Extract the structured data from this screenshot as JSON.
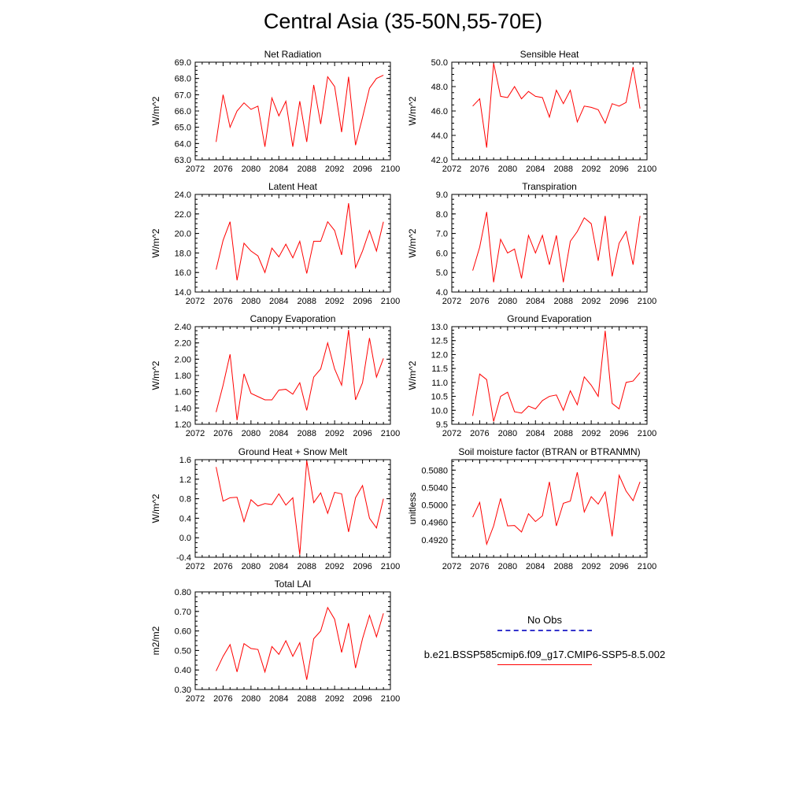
{
  "title": "Central Asia (35-50N,55-70E)",
  "legend": {
    "entries": [
      {
        "label": "No Obs",
        "color": "#3333cc",
        "dash": "dashed"
      },
      {
        "label": "b.e21.BSSP585cmip6.f09_g17.CMIP6-SSP5-8.5.002",
        "color": "#ff0000",
        "dash": "solid"
      }
    ]
  },
  "chart_data": [
    {
      "type": "line",
      "title": "Net Radiation",
      "ylabel": "W/m^2",
      "xlim": [
        2072,
        2100
      ],
      "xticks": [
        "2072",
        "2076",
        "2080",
        "2084",
        "2088",
        "2092",
        "2096",
        "2100"
      ],
      "ylim": [
        63,
        69
      ],
      "yticks": [
        "63.0",
        "64.0",
        "65.0",
        "66.0",
        "67.0",
        "68.0",
        "69.0"
      ],
      "x": [
        2075,
        2076,
        2077,
        2078,
        2079,
        2080,
        2081,
        2082,
        2083,
        2084,
        2085,
        2086,
        2087,
        2088,
        2089,
        2090,
        2091,
        2092,
        2093,
        2094,
        2095,
        2096,
        2097,
        2098,
        2099
      ],
      "series": [
        {
          "color": "#ff0000",
          "values": [
            64.1,
            67.0,
            65.0,
            66.0,
            66.5,
            66.1,
            66.3,
            63.8,
            66.8,
            65.7,
            66.6,
            63.8,
            66.6,
            64.1,
            67.6,
            65.2,
            68.1,
            67.5,
            64.7,
            68.1,
            63.9,
            65.6,
            67.4,
            68.0,
            68.2
          ]
        }
      ]
    },
    {
      "type": "line",
      "title": "Sensible Heat",
      "ylabel": "W/m^2",
      "xlim": [
        2072,
        2100
      ],
      "xticks": [
        "2072",
        "2076",
        "2080",
        "2084",
        "2088",
        "2092",
        "2096",
        "2100"
      ],
      "ylim": [
        42,
        50
      ],
      "yticks": [
        "42.0",
        "44.0",
        "46.0",
        "48.0",
        "50.0"
      ],
      "x": [
        2075,
        2076,
        2077,
        2078,
        2079,
        2080,
        2081,
        2082,
        2083,
        2084,
        2085,
        2086,
        2087,
        2088,
        2089,
        2090,
        2091,
        2092,
        2093,
        2094,
        2095,
        2096,
        2097,
        2098,
        2099
      ],
      "series": [
        {
          "color": "#ff0000",
          "values": [
            46.4,
            47.0,
            43.0,
            49.9,
            47.2,
            47.1,
            48.0,
            47.0,
            47.6,
            47.2,
            47.1,
            45.5,
            47.7,
            46.6,
            47.7,
            45.1,
            46.4,
            46.3,
            46.1,
            45.0,
            46.6,
            46.4,
            46.7,
            49.6,
            46.2
          ]
        }
      ]
    },
    {
      "type": "line",
      "title": "Latent Heat",
      "ylabel": "W/m^2",
      "xlim": [
        2072,
        2100
      ],
      "xticks": [
        "2072",
        "2076",
        "2080",
        "2084",
        "2088",
        "2092",
        "2096",
        "2100"
      ],
      "ylim": [
        14,
        24
      ],
      "yticks": [
        "14.0",
        "16.0",
        "18.0",
        "20.0",
        "22.0",
        "24.0"
      ],
      "x": [
        2075,
        2076,
        2077,
        2078,
        2079,
        2080,
        2081,
        2082,
        2083,
        2084,
        2085,
        2086,
        2087,
        2088,
        2089,
        2090,
        2091,
        2092,
        2093,
        2094,
        2095,
        2096,
        2097,
        2098,
        2099
      ],
      "series": [
        {
          "color": "#ff0000",
          "values": [
            16.3,
            19.3,
            21.2,
            15.2,
            19.0,
            18.2,
            17.7,
            16.0,
            18.5,
            17.6,
            18.9,
            17.5,
            19.2,
            15.9,
            19.2,
            19.2,
            21.2,
            20.3,
            17.8,
            23.1,
            16.5,
            18.2,
            20.3,
            18.2,
            21.2
          ]
        }
      ]
    },
    {
      "type": "line",
      "title": "Transpiration",
      "ylabel": "W/m^2",
      "xlim": [
        2072,
        2100
      ],
      "xticks": [
        "2072",
        "2076",
        "2080",
        "2084",
        "2088",
        "2092",
        "2096",
        "2100"
      ],
      "ylim": [
        4,
        9
      ],
      "yticks": [
        "4.0",
        "5.0",
        "6.0",
        "7.0",
        "8.0",
        "9.0"
      ],
      "x": [
        2075,
        2076,
        2077,
        2078,
        2079,
        2080,
        2081,
        2082,
        2083,
        2084,
        2085,
        2086,
        2087,
        2088,
        2089,
        2090,
        2091,
        2092,
        2093,
        2094,
        2095,
        2096,
        2097,
        2098,
        2099
      ],
      "series": [
        {
          "color": "#ff0000",
          "values": [
            5.1,
            6.3,
            8.1,
            4.5,
            6.7,
            6.0,
            6.2,
            4.7,
            6.9,
            6.0,
            6.9,
            5.4,
            6.9,
            4.5,
            6.6,
            7.1,
            7.8,
            7.5,
            5.6,
            7.9,
            4.8,
            6.5,
            7.1,
            5.4,
            7.9
          ]
        }
      ]
    },
    {
      "type": "line",
      "title": "Canopy Evaporation",
      "ylabel": "W/m^2",
      "xlim": [
        2072,
        2100
      ],
      "xticks": [
        "2072",
        "2076",
        "2080",
        "2084",
        "2088",
        "2092",
        "2096",
        "2100"
      ],
      "ylim": [
        1.2,
        2.4
      ],
      "yticks": [
        "1.20",
        "1.40",
        "1.60",
        "1.80",
        "2.00",
        "2.20",
        "2.40"
      ],
      "x": [
        2075,
        2076,
        2077,
        2078,
        2079,
        2080,
        2081,
        2082,
        2083,
        2084,
        2085,
        2086,
        2087,
        2088,
        2089,
        2090,
        2091,
        2092,
        2093,
        2094,
        2095,
        2096,
        2097,
        2098,
        2099
      ],
      "series": [
        {
          "color": "#ff0000",
          "values": [
            1.35,
            1.68,
            2.06,
            1.25,
            1.82,
            1.58,
            1.54,
            1.5,
            1.5,
            1.62,
            1.63,
            1.57,
            1.71,
            1.37,
            1.78,
            1.88,
            2.2,
            1.88,
            1.68,
            2.36,
            1.5,
            1.71,
            2.26,
            1.78,
            2.01
          ]
        }
      ]
    },
    {
      "type": "line",
      "title": "Ground Evaporation",
      "ylabel": "W/m^2",
      "xlim": [
        2072,
        2100
      ],
      "xticks": [
        "2072",
        "2076",
        "2080",
        "2084",
        "2088",
        "2092",
        "2096",
        "2100"
      ],
      "ylim": [
        9.5,
        13.0
      ],
      "yticks": [
        "9.5",
        "10.0",
        "10.5",
        "11.0",
        "11.5",
        "12.0",
        "12.5",
        "13.0"
      ],
      "x": [
        2075,
        2076,
        2077,
        2078,
        2079,
        2080,
        2081,
        2082,
        2083,
        2084,
        2085,
        2086,
        2087,
        2088,
        2089,
        2090,
        2091,
        2092,
        2093,
        2094,
        2095,
        2096,
        2097,
        2098,
        2099
      ],
      "series": [
        {
          "color": "#ff0000",
          "values": [
            9.8,
            11.3,
            11.1,
            9.6,
            10.5,
            10.65,
            9.95,
            9.9,
            10.15,
            10.05,
            10.35,
            10.5,
            10.55,
            10.0,
            10.7,
            10.2,
            11.2,
            10.9,
            10.5,
            12.85,
            10.25,
            10.05,
            11.0,
            11.05,
            11.35
          ]
        }
      ]
    },
    {
      "type": "line",
      "title": "Ground Heat + Snow Melt",
      "ylabel": "W/m^2",
      "xlim": [
        2072,
        2100
      ],
      "xticks": [
        "2072",
        "2076",
        "2080",
        "2084",
        "2088",
        "2092",
        "2096",
        "2100"
      ],
      "ylim": [
        -0.4,
        1.6
      ],
      "yticks": [
        "-0.4",
        "0.0",
        "0.4",
        "0.8",
        "1.2",
        "1.6"
      ],
      "x": [
        2075,
        2076,
        2077,
        2078,
        2079,
        2080,
        2081,
        2082,
        2083,
        2084,
        2085,
        2086,
        2087,
        2088,
        2089,
        2090,
        2091,
        2092,
        2093,
        2094,
        2095,
        2096,
        2097,
        2098,
        2099
      ],
      "series": [
        {
          "color": "#ff0000",
          "values": [
            1.45,
            0.75,
            0.82,
            0.83,
            0.33,
            0.78,
            0.65,
            0.7,
            0.68,
            0.9,
            0.67,
            0.82,
            -0.35,
            1.58,
            0.72,
            0.92,
            0.5,
            0.93,
            0.9,
            0.12,
            0.82,
            1.07,
            0.4,
            0.2,
            0.8
          ]
        }
      ]
    },
    {
      "type": "line",
      "title": "Soil moisture factor (BTRAN or BTRANMN)",
      "ylabel": "unitless",
      "xlim": [
        2072,
        2100
      ],
      "xticks": [
        "2072",
        "2076",
        "2080",
        "2084",
        "2088",
        "2092",
        "2096",
        "2100"
      ],
      "ylim": [
        0.488,
        0.5104
      ],
      "yticks": [
        "0.4920",
        "0.4960",
        "0.5000",
        "0.5040",
        "0.5080"
      ],
      "x": [
        2075,
        2076,
        2077,
        2078,
        2079,
        2080,
        2081,
        2082,
        2083,
        2084,
        2085,
        2086,
        2087,
        2088,
        2089,
        2090,
        2091,
        2092,
        2093,
        2094,
        2095,
        2096,
        2097,
        2098,
        2099
      ],
      "series": [
        {
          "color": "#ff0000",
          "values": [
            0.4972,
            0.5006,
            0.491,
            0.4952,
            0.5015,
            0.4952,
            0.4953,
            0.4938,
            0.498,
            0.4962,
            0.4975,
            0.5053,
            0.4952,
            0.5004,
            0.5009,
            0.5075,
            0.4984,
            0.5019,
            0.5002,
            0.503,
            0.4928,
            0.5068,
            0.5032,
            0.501,
            0.5053
          ]
        }
      ]
    },
    {
      "type": "line",
      "title": "Total LAI",
      "ylabel": "m2/m2",
      "xlim": [
        2072,
        2100
      ],
      "xticks": [
        "2072",
        "2076",
        "2080",
        "2084",
        "2088",
        "2092",
        "2096",
        "2100"
      ],
      "ylim": [
        0.3,
        0.8
      ],
      "yticks": [
        "0.30",
        "0.40",
        "0.50",
        "0.60",
        "0.70",
        "0.80"
      ],
      "x": [
        2075,
        2076,
        2077,
        2078,
        2079,
        2080,
        2081,
        2082,
        2083,
        2084,
        2085,
        2086,
        2087,
        2088,
        2089,
        2090,
        2091,
        2092,
        2093,
        2094,
        2095,
        2096,
        2097,
        2098,
        2099
      ],
      "series": [
        {
          "color": "#ff0000",
          "values": [
            0.395,
            0.47,
            0.53,
            0.39,
            0.535,
            0.51,
            0.505,
            0.39,
            0.52,
            0.48,
            0.55,
            0.47,
            0.54,
            0.35,
            0.56,
            0.6,
            0.72,
            0.66,
            0.49,
            0.64,
            0.41,
            0.56,
            0.68,
            0.57,
            0.69
          ]
        }
      ]
    }
  ]
}
